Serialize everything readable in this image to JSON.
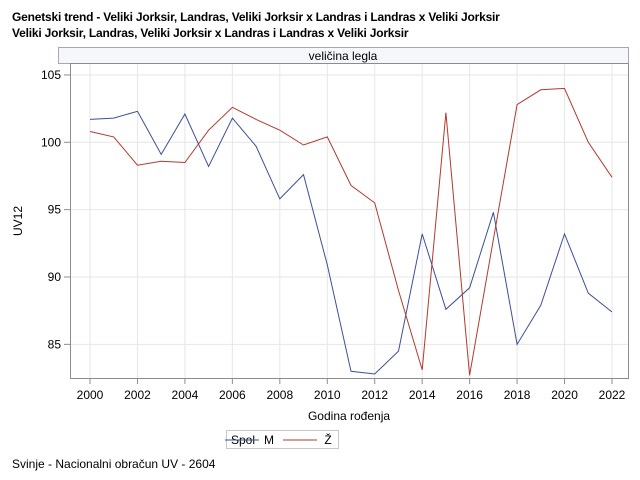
{
  "title_lines": [
    "Genetski trend - Veliki Jorksir, Landras, Veliki Jorksir x Landras i Landras x Veliki Jorksir",
    "Veliki Jorksir, Landras, Veliki Jorksir x Landras i Landras x Veliki Jorksir"
  ],
  "footer": "Svinje - Nacionalni obračun UV - 2604",
  "chart_data": {
    "type": "line",
    "panel_title": "veličina legla",
    "xlabel": "Godina rođenja",
    "ylabel": "UV12",
    "x": [
      2000,
      2001,
      2002,
      2003,
      2004,
      2005,
      2006,
      2007,
      2008,
      2009,
      2010,
      2011,
      2012,
      2013,
      2014,
      2015,
      2016,
      2017,
      2018,
      2019,
      2020,
      2021,
      2022
    ],
    "xlim": [
      2000,
      2022
    ],
    "ylim": [
      82.3,
      105.8
    ],
    "x_ticks": [
      2000,
      2002,
      2004,
      2006,
      2008,
      2010,
      2012,
      2014,
      2016,
      2018,
      2020,
      2022
    ],
    "y_ticks": [
      85,
      90,
      95,
      100,
      105
    ],
    "grid": true,
    "legend": {
      "title": "Spol",
      "placement": "bottom"
    },
    "series": [
      {
        "name": "M",
        "color": "#3d4f96",
        "values": [
          101.7,
          101.8,
          102.3,
          99.1,
          102.1,
          98.2,
          101.8,
          99.7,
          95.8,
          97.6,
          90.9,
          83.0,
          82.8,
          84.5,
          93.2,
          87.6,
          89.2,
          94.8,
          85.0,
          87.9,
          93.2,
          88.8,
          87.4
        ]
      },
      {
        "name": "Ž",
        "color": "#b03a2e",
        "values": [
          100.8,
          100.4,
          98.3,
          98.6,
          98.5,
          100.9,
          102.6,
          101.7,
          100.9,
          99.8,
          100.4,
          96.8,
          95.5,
          89.0,
          83.1,
          102.2,
          82.7,
          92.8,
          102.8,
          103.9,
          104.0,
          100.0,
          97.4
        ]
      }
    ]
  }
}
